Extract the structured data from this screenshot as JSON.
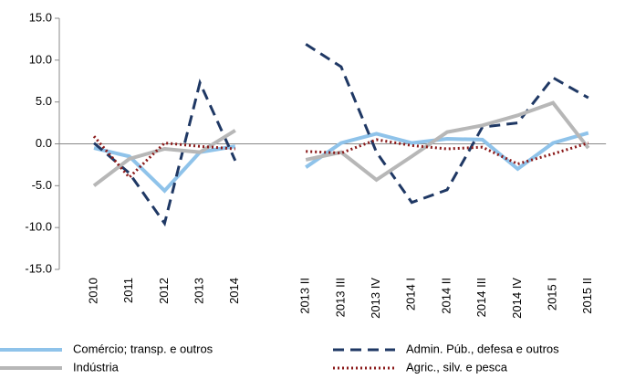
{
  "chart_data": {
    "type": "line",
    "categories": [
      "2010",
      "2011",
      "2012",
      "2013",
      "2014",
      null,
      "2013 II",
      "2013 III",
      "2013 IV",
      "2014 I",
      "2014 II",
      "2014 III",
      "2014 IV",
      "2015 I",
      "2015 II"
    ],
    "ylim": [
      -15,
      15
    ],
    "yticks": [
      {
        "value": -15,
        "label": "-15.0"
      },
      {
        "value": -10,
        "label": "-10.0"
      },
      {
        "value": -5,
        "label": "-5.0"
      },
      {
        "value": 0,
        "label": "0.0"
      },
      {
        "value": 5,
        "label": "5.0"
      },
      {
        "value": 10,
        "label": "10.0"
      },
      {
        "value": 15,
        "label": "15.0"
      }
    ],
    "series": [
      {
        "name": "Comércio; transp. e outros",
        "color": "#8fc3ea",
        "style": "solid",
        "values": [
          -0.5,
          -1.5,
          -5.6,
          -1.0,
          -0.3,
          null,
          -2.8,
          0.1,
          1.2,
          0.1,
          0.6,
          0.5,
          -3.0,
          0.1,
          1.3
        ]
      },
      {
        "name": "Admin. Púb., defesa e outros",
        "color": "#1f3864",
        "style": "dashed",
        "values": [
          0.1,
          -3.5,
          -9.5,
          7.3,
          -2.0,
          null,
          11.9,
          9.2,
          -1.0,
          -7.0,
          -5.5,
          2.0,
          2.5,
          7.9,
          5.5
        ]
      },
      {
        "name": "Indústria",
        "color": "#b7b7b7",
        "style": "solid",
        "values": [
          -5.0,
          -1.8,
          -0.6,
          -1.0,
          1.6,
          null,
          -1.9,
          -1.0,
          -4.3,
          -1.5,
          1.4,
          2.2,
          3.4,
          4.9,
          -0.5
        ]
      },
      {
        "name": "Agric., silv. e pesca",
        "color": "#8b1a1a",
        "style": "dotted",
        "values": [
          0.9,
          -4.0,
          0.1,
          -0.3,
          -0.6,
          null,
          -0.9,
          -1.1,
          0.5,
          -0.2,
          -0.6,
          -0.4,
          -2.4,
          -1.2,
          0.1
        ]
      }
    ]
  }
}
